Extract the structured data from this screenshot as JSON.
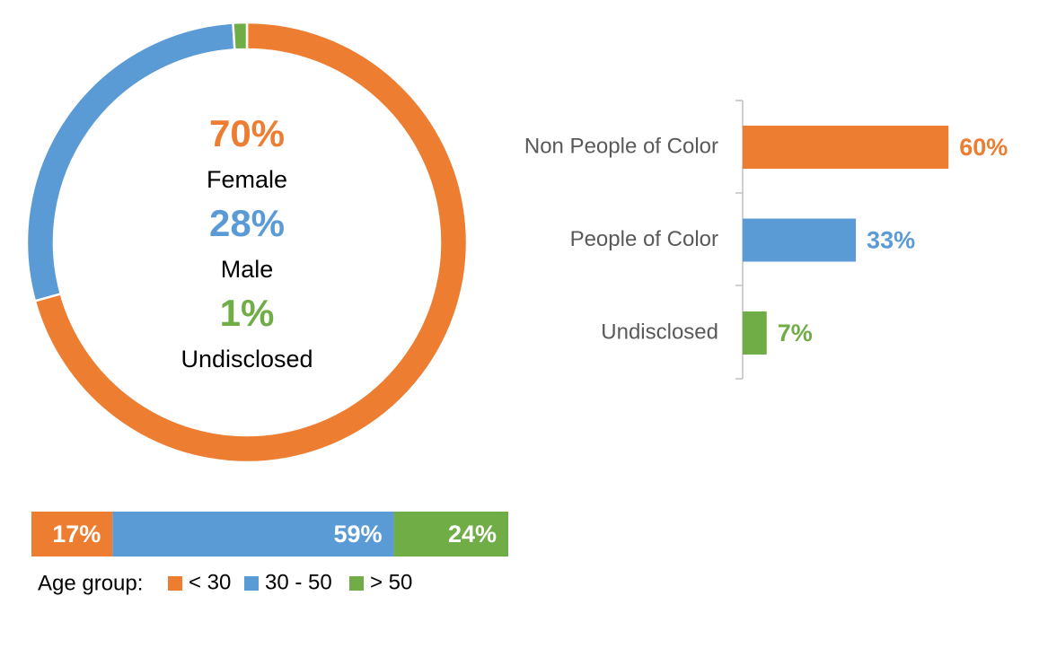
{
  "chart_data": [
    {
      "type": "donut",
      "categories": [
        "Female",
        "Male",
        "Undisclosed"
      ],
      "values": [
        70,
        28,
        1
      ],
      "value_labels": [
        "70%",
        "28%",
        "1%"
      ],
      "colors": [
        "#ED7D31",
        "#5B9BD5",
        "#70AD47"
      ]
    },
    {
      "type": "hbar",
      "categories": [
        "Non People of Color",
        "People of Color",
        "Undisclosed"
      ],
      "values": [
        60,
        33,
        7
      ],
      "value_labels": [
        "60%",
        "33%",
        "7%"
      ],
      "colors": [
        "#ED7D31",
        "#5B9BD5",
        "#70AD47"
      ]
    },
    {
      "type": "stacked_hbar",
      "legend_title": "Age group:",
      "series": [
        {
          "name": "< 30",
          "color": "#ED7D31",
          "values": [
            17
          ],
          "value_labels": [
            "17%"
          ]
        },
        {
          "name": "30 - 50",
          "color": "#5B9BD5",
          "values": [
            59
          ],
          "value_labels": [
            "59%"
          ]
        },
        {
          "name": "> 50",
          "color": "#70AD47",
          "values": [
            24
          ],
          "value_labels": [
            "24%"
          ]
        }
      ]
    }
  ]
}
